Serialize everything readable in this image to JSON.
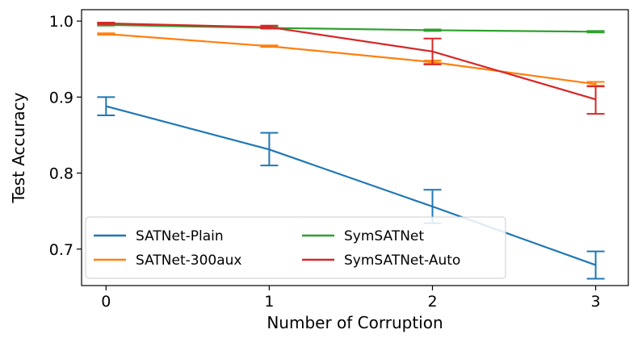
{
  "chart_data": {
    "type": "line",
    "title": "",
    "xlabel": "Number of Corruption",
    "ylabel": "Test Accuracy",
    "x": [
      0,
      1,
      2,
      3
    ],
    "x_tick_labels": [
      "0",
      "1",
      "2",
      "3"
    ],
    "xlim": [
      -0.15,
      3.2
    ],
    "y_ticks": [
      0.7,
      0.8,
      0.9,
      1.0
    ],
    "y_tick_labels": [
      "0.7",
      "0.8",
      "0.9",
      "1.0"
    ],
    "ylim": [
      0.652,
      1.015
    ],
    "grid": false,
    "legend": {
      "placement": "bottom-left",
      "columns": 2
    },
    "series": [
      {
        "name": "SATNet-Plain",
        "color": "#1f77b4",
        "values": [
          0.888,
          0.831,
          0.756,
          0.679
        ],
        "err_low": [
          0.876,
          0.81,
          0.734,
          0.661
        ],
        "err_high": [
          0.9,
          0.853,
          0.778,
          0.697
        ]
      },
      {
        "name": "SATNet-300aux",
        "color": "#ff7f0e",
        "values": [
          0.983,
          0.967,
          0.946,
          0.917
        ],
        "err_low": [
          0.982,
          0.966,
          0.944,
          0.915
        ],
        "err_high": [
          0.984,
          0.968,
          0.948,
          0.92
        ]
      },
      {
        "name": "SymSATNet",
        "color": "#2ca02c",
        "values": [
          0.995,
          0.991,
          0.988,
          0.986
        ],
        "err_low": [
          0.994,
          0.99,
          0.987,
          0.985
        ],
        "err_high": [
          0.996,
          0.992,
          0.989,
          0.987
        ]
      },
      {
        "name": "SymSATNet-Auto",
        "color": "#d62728",
        "values": [
          0.997,
          0.992,
          0.96,
          0.897
        ],
        "err_low": [
          0.996,
          0.99,
          0.943,
          0.878
        ],
        "err_high": [
          0.998,
          0.994,
          0.977,
          0.914
        ]
      }
    ]
  }
}
